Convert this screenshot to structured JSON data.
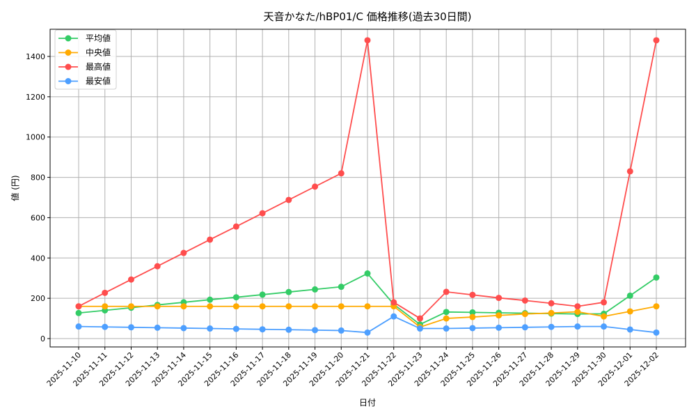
{
  "chart_data": {
    "type": "line",
    "title": "天音かなた/hBP01/C 価格推移(過去30日間)",
    "xlabel": "日付",
    "ylabel": "値 (円)",
    "ylim": [
      -40,
      1550
    ],
    "yticks": [
      0,
      200,
      400,
      600,
      800,
      1000,
      1200,
      1400
    ],
    "grid": true,
    "legend_position": "upper left",
    "x": [
      "2025-11-10",
      "2025-11-11",
      "2025-11-12",
      "2025-11-13",
      "2025-11-14",
      "2025-11-15",
      "2025-11-16",
      "2025-11-17",
      "2025-11-18",
      "2025-11-19",
      "2025-11-20",
      "2025-11-21",
      "2025-11-22",
      "2025-11-23",
      "2025-11-24",
      "2025-11-25",
      "2025-11-26",
      "2025-11-27",
      "2025-11-28",
      "2025-11-29",
      "2025-11-30",
      "2025-12-01",
      "2025-12-02"
    ],
    "series": [
      {
        "name": "平均値",
        "color": "#33cc66",
        "values": [
          127,
          140,
          153,
          167,
          180,
          193,
          205,
          218,
          231,
          244,
          257,
          323,
          170,
          70,
          132,
          130,
          128,
          126,
          124,
          122,
          123,
          213,
          303
        ]
      },
      {
        "name": "中央値",
        "color": "#ffaa00",
        "values": [
          160,
          160,
          160,
          160,
          160,
          160,
          160,
          160,
          160,
          160,
          160,
          160,
          160,
          57,
          100,
          107,
          115,
          122,
          127,
          133,
          110,
          135,
          160
        ]
      },
      {
        "name": "最高値",
        "color": "#ff4d4d",
        "values": [
          160,
          227,
          293,
          359,
          425,
          491,
          556,
          622,
          688,
          754,
          820,
          1480,
          180,
          100,
          232,
          217,
          202,
          189,
          175,
          160,
          180,
          830,
          1480
        ]
      },
      {
        "name": "最安値",
        "color": "#4d9fff",
        "values": [
          60,
          58,
          56,
          54,
          52,
          50,
          48,
          46,
          44,
          42,
          40,
          30,
          110,
          50,
          50,
          52,
          54,
          56,
          58,
          60,
          60,
          45,
          30
        ]
      }
    ]
  }
}
